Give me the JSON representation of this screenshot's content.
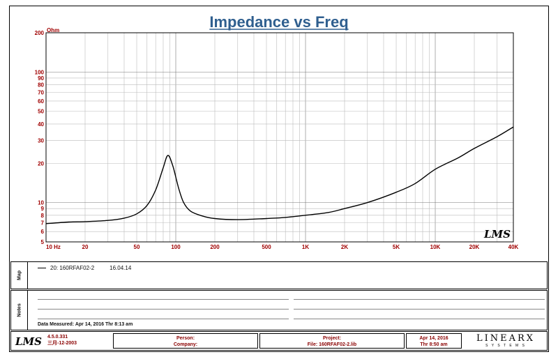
{
  "chart_data": {
    "type": "line",
    "title": "Impedance vs Freq",
    "y_unit_label": "Ohm",
    "x_scale": "log",
    "y_scale": "log",
    "xlim": [
      10,
      40000
    ],
    "ylim": [
      5,
      200
    ],
    "grid": true,
    "x_tick_labels": [
      {
        "v": 10,
        "t": "10 Hz"
      },
      {
        "v": 20,
        "t": "20"
      },
      {
        "v": 50,
        "t": "50"
      },
      {
        "v": 100,
        "t": "100"
      },
      {
        "v": 200,
        "t": "200"
      },
      {
        "v": 500,
        "t": "500"
      },
      {
        "v": 1000,
        "t": "1K"
      },
      {
        "v": 2000,
        "t": "2K"
      },
      {
        "v": 5000,
        "t": "5K"
      },
      {
        "v": 10000,
        "t": "10K"
      },
      {
        "v": 20000,
        "t": "20K"
      },
      {
        "v": 40000,
        "t": "40K"
      }
    ],
    "y_tick_labels": [
      {
        "v": 5,
        "t": "5"
      },
      {
        "v": 6,
        "t": "6"
      },
      {
        "v": 7,
        "t": "7"
      },
      {
        "v": 8,
        "t": "8"
      },
      {
        "v": 9,
        "t": "9"
      },
      {
        "v": 10,
        "t": "10"
      },
      {
        "v": 20,
        "t": "20"
      },
      {
        "v": 30,
        "t": "30"
      },
      {
        "v": 40,
        "t": "40"
      },
      {
        "v": 50,
        "t": "50"
      },
      {
        "v": 60,
        "t": "60"
      },
      {
        "v": 70,
        "t": "70"
      },
      {
        "v": 80,
        "t": "80"
      },
      {
        "v": 90,
        "t": "90"
      },
      {
        "v": 100,
        "t": "100"
      },
      {
        "v": 200,
        "t": "200"
      }
    ],
    "series": [
      {
        "name": "20: 160RFAF02-2",
        "color": "#000000",
        "points": [
          [
            10,
            6.9
          ],
          [
            15,
            7.1
          ],
          [
            20,
            7.15
          ],
          [
            30,
            7.3
          ],
          [
            40,
            7.6
          ],
          [
            50,
            8.2
          ],
          [
            60,
            9.5
          ],
          [
            70,
            12.5
          ],
          [
            80,
            18.5
          ],
          [
            87,
            23
          ],
          [
            95,
            19
          ],
          [
            105,
            13
          ],
          [
            115,
            10
          ],
          [
            130,
            8.6
          ],
          [
            160,
            7.9
          ],
          [
            200,
            7.55
          ],
          [
            300,
            7.4
          ],
          [
            500,
            7.55
          ],
          [
            700,
            7.7
          ],
          [
            1000,
            8.0
          ],
          [
            1500,
            8.4
          ],
          [
            2000,
            9.0
          ],
          [
            3000,
            10.0
          ],
          [
            5000,
            12.0
          ],
          [
            7000,
            14.0
          ],
          [
            10000,
            18.0
          ],
          [
            15000,
            22.0
          ],
          [
            20000,
            26.0
          ],
          [
            30000,
            32.0
          ],
          [
            40000,
            38.0
          ]
        ]
      }
    ]
  },
  "brand": {
    "logo_text": "LMS",
    "colors": {
      "title": "#2f5f8f",
      "tick_labels": "#a00000",
      "footer_text": "#8a0000"
    }
  },
  "map_panel": {
    "label": "Map",
    "legend_name": "20: 160RFAF02-2",
    "legend_date": "16.04.14"
  },
  "notes_panel": {
    "label": "Notes",
    "data_measured": "Data Measured: Apr 14, 2016  Thr  8:13 am"
  },
  "footer": {
    "version": "4.5.0.331",
    "version_date": "三月-12-2003",
    "person_label": "Person:",
    "company_label": "Company:",
    "project_label": "Project:",
    "file_label": "File: 160RFAF02-2.lib",
    "date": "Apr 14, 2016",
    "time": "Thr  8:50 am",
    "company_logo": "LINEARX",
    "company_logo_sub": "S Y S T E M S"
  }
}
